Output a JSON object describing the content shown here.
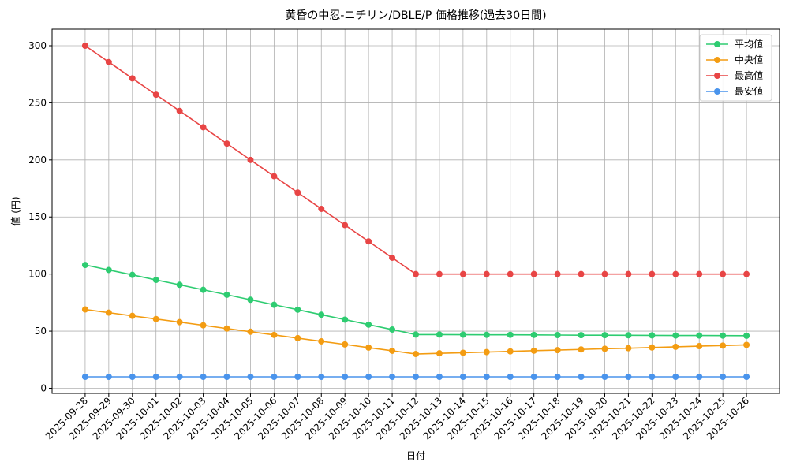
{
  "chart_data": {
    "type": "line",
    "title": "黄昏の中忍-ニチリン/DBLE/P 価格推移(過去30日間)",
    "x_label": "日付",
    "y_label": "値 (円)",
    "categories": [
      "2025-09-28",
      "2025-09-29",
      "2025-09-30",
      "2025-10-01",
      "2025-10-02",
      "2025-10-03",
      "2025-10-04",
      "2025-10-05",
      "2025-10-06",
      "2025-10-07",
      "2025-10-08",
      "2025-10-09",
      "2025-10-10",
      "2025-10-11",
      "2025-10-12",
      "2025-10-13",
      "2025-10-14",
      "2025-10-15",
      "2025-10-16",
      "2025-10-17",
      "2025-10-18",
      "2025-10-19",
      "2025-10-20",
      "2025-10-21",
      "2025-10-22",
      "2025-10-23",
      "2025-10-24",
      "2025-10-25",
      "2025-10-26"
    ],
    "series": [
      {
        "name": "平均値",
        "color": "#2ecc71",
        "values": [
          108,
          103.6,
          99.3,
          94.9,
          90.6,
          86.2,
          81.9,
          77.5,
          73.1,
          68.8,
          64.4,
          60.1,
          55.7,
          51.4,
          47,
          47,
          46.9,
          46.8,
          46.8,
          46.7,
          46.6,
          46.5,
          46.5,
          46.4,
          46.3,
          46.2,
          46.2,
          46.1,
          46
        ]
      },
      {
        "name": "中央値",
        "color": "#f39c12",
        "values": [
          69,
          66.2,
          63.4,
          60.6,
          57.9,
          55.1,
          52.3,
          49.5,
          46.7,
          43.9,
          41.1,
          38.4,
          35.6,
          32.8,
          30,
          30.6,
          31.1,
          31.7,
          32.3,
          32.9,
          33.4,
          34,
          34.6,
          35.1,
          35.7,
          36.3,
          36.9,
          37.4,
          38
        ]
      },
      {
        "name": "最高値",
        "color": "#e84545",
        "values": [
          300,
          285.7,
          271.4,
          257.1,
          242.9,
          228.6,
          214.3,
          200,
          185.7,
          171.4,
          157.1,
          142.9,
          128.6,
          114.3,
          100,
          100,
          100,
          100,
          100,
          100,
          100,
          100,
          100,
          100,
          100,
          100,
          100,
          100,
          100
        ]
      },
      {
        "name": "最安値",
        "color": "#4a94ec",
        "values": [
          10,
          10,
          10,
          10,
          10,
          10,
          10,
          10,
          10,
          10,
          10,
          10,
          10,
          10,
          10,
          10,
          10,
          10,
          10,
          10,
          10,
          10,
          10,
          10,
          10,
          10,
          10,
          10,
          10
        ]
      }
    ],
    "ylim": [
      -4.5,
      314.5
    ],
    "yticks": [
      0,
      50,
      100,
      150,
      200,
      250,
      300
    ],
    "grid": true,
    "legend": "upper right"
  }
}
